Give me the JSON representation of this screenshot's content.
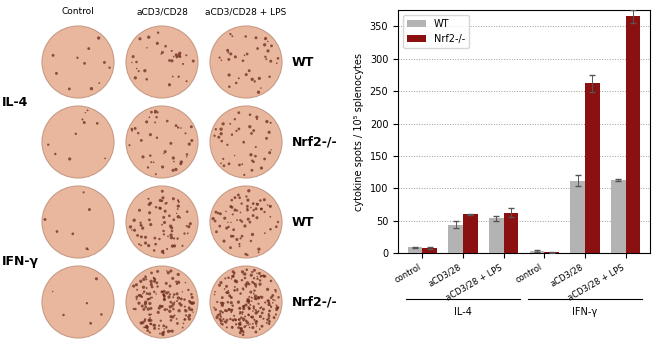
{
  "chart_data": {
    "type": "bar",
    "categories": [
      "control",
      "aCD3/28",
      "aCD3/28 + LPS",
      "control",
      "aCD3/28",
      "aCD3/28 + LPS"
    ],
    "category_groups": [
      "IL-4",
      "IL-4",
      "IL-4",
      "IFN-γ",
      "IFN-γ",
      "IFN-γ"
    ],
    "y_label": "cytokine spots / 10⁵ splenocytes",
    "series": [
      {
        "name": "WT",
        "color": "#b3b3b3",
        "values": [
          9,
          44,
          54,
          3,
          112,
          113
        ],
        "errors": [
          1,
          5,
          4,
          1,
          8,
          2
        ]
      },
      {
        "name": "Nrf2-/-",
        "color": "#8b1010",
        "values": [
          8,
          60,
          62,
          1,
          262,
          366
        ],
        "errors": [
          1,
          1,
          7,
          0.5,
          13,
          10
        ]
      }
    ],
    "ylim": [
      0,
      375
    ],
    "yticks": [
      0,
      50,
      100,
      150,
      200,
      250,
      300,
      350
    ],
    "grid": true,
    "legend": "upper left"
  },
  "wells": {
    "columns": [
      "Control",
      "aCD3/CD28",
      "aCD3/CD28 + LPS"
    ],
    "cytokines": [
      {
        "label": "IL-4",
        "rows": [
          "WT",
          "Nrf2-/-"
        ]
      },
      {
        "label": "IFN-γ",
        "rows": [
          "WT",
          "Nrf2-/-"
        ]
      }
    ]
  }
}
